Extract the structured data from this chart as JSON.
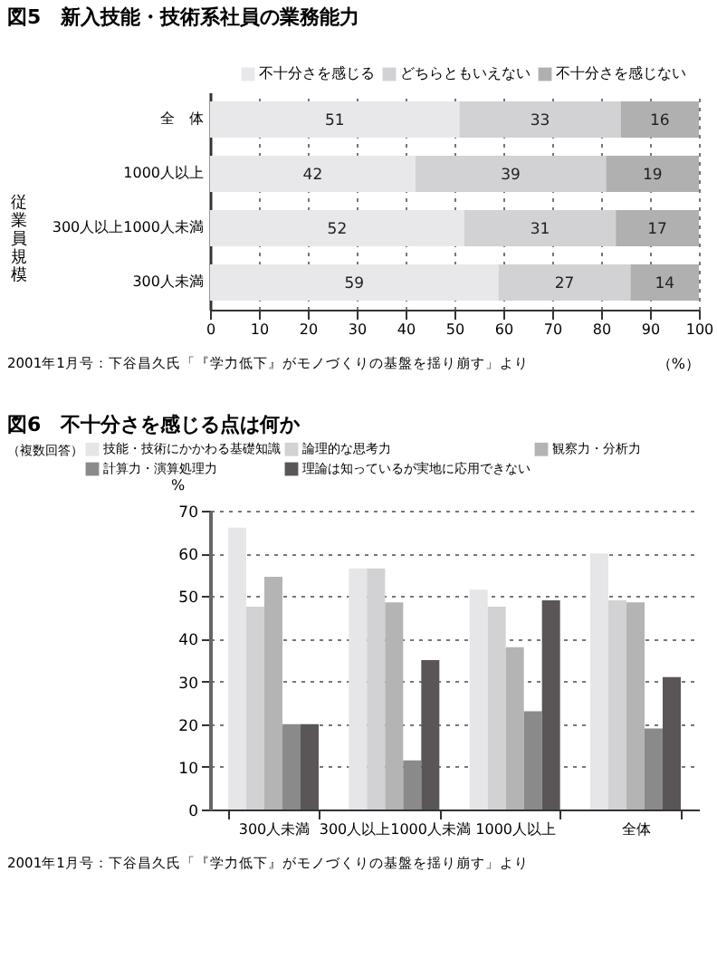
{
  "chart_data": [
    {
      "type": "bar",
      "orientation": "horizontal",
      "stacked": true,
      "title": "図5　新入技能・技術系社員の業務能力",
      "categories": [
        "全　体",
        "1000人以上",
        "300人以上1000人未満",
        "300人未満"
      ],
      "series": [
        {
          "name": "不十分さを感じる",
          "color": "#e8e8ea",
          "values": [
            51,
            42,
            52,
            59
          ]
        },
        {
          "name": "どちらともいえない",
          "color": "#d2d2d4",
          "values": [
            33,
            39,
            31,
            27
          ]
        },
        {
          "name": "不十分さを感じない",
          "color": "#b0b0b0",
          "values": [
            16,
            19,
            17,
            14
          ]
        }
      ],
      "xlim": [
        0,
        100
      ],
      "xticks": [
        0,
        10,
        20,
        30,
        40,
        50,
        60,
        70,
        80,
        90,
        100
      ],
      "xlabel": "（%）",
      "ylabel": "従業員規模",
      "grid": "x",
      "legend": "top right",
      "data_labels": true,
      "annotations": [
        "2001年1月号：下谷昌久氏「『学力低下』がモノづくりの基盤を揺り崩す」より"
      ]
    },
    {
      "type": "bar",
      "title": "図6　不十分さを感じる点は何か",
      "categories": [
        "300人未満",
        "300人以上1000人未満",
        "1000人以上",
        "全体"
      ],
      "series": [
        {
          "name": "技能・技術にかかわる基礎知識",
          "color": "#e6e6e8",
          "values": [
            66,
            56.5,
            51.5,
            60
          ]
        },
        {
          "name": "論理的な思考力",
          "color": "#d2d2d4",
          "values": [
            47.5,
            56.5,
            47.5,
            49
          ]
        },
        {
          "name": "観察力・分析力",
          "color": "#b4b4b4",
          "values": [
            54.5,
            48.5,
            38,
            48.5
          ]
        },
        {
          "name": "計算力・演算処理力",
          "color": "#8a8a8a",
          "values": [
            20,
            11.5,
            23,
            19
          ]
        },
        {
          "name": "理論は知っているが実地に応用できない",
          "color": "#5a5657",
          "values": [
            20,
            35,
            49,
            31
          ]
        }
      ],
      "ylim": [
        0,
        70
      ],
      "yticks": [
        0,
        10,
        20,
        30,
        40,
        50,
        60,
        70
      ],
      "ylabel": "%",
      "grid": "y",
      "legend": "top",
      "annotations": [
        "（複数回答）",
        "2001年1月号：下谷昌久氏「『学力低下』がモノづくりの基盤を揺り崩す」より"
      ]
    }
  ]
}
